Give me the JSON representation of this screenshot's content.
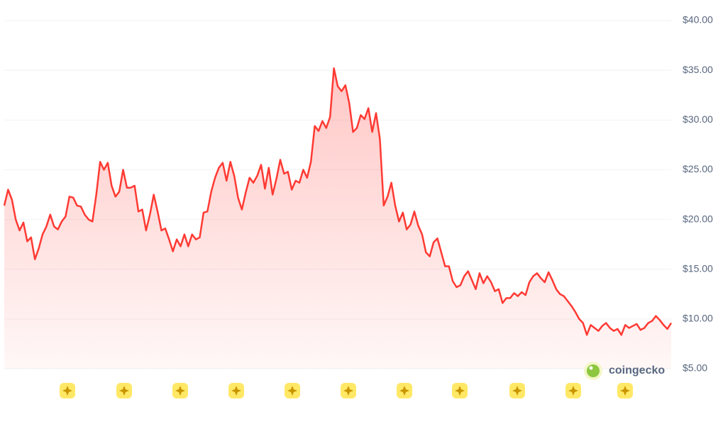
{
  "chart_data": {
    "type": "area",
    "watermark": "coingecko",
    "color": "#ff3a33",
    "ylim": [
      5,
      40
    ],
    "yticks": [
      {
        "value": 5,
        "label": "$5.00"
      },
      {
        "value": 10,
        "label": "$10.00"
      },
      {
        "value": 15,
        "label": "$15.00"
      },
      {
        "value": 20,
        "label": "$20.00"
      },
      {
        "value": 25,
        "label": "$25.00"
      },
      {
        "value": 30,
        "label": "$30.00"
      },
      {
        "value": 35,
        "label": "$35.00"
      },
      {
        "value": 40,
        "label": "$40.00"
      }
    ],
    "grid": true,
    "values": [
      21.4,
      23.0,
      22.0,
      20.0,
      18.9,
      19.7,
      17.8,
      18.2,
      16.0,
      17.1,
      18.5,
      19.3,
      20.5,
      19.3,
      19.0,
      19.8,
      20.3,
      22.3,
      22.2,
      21.4,
      21.3,
      20.5,
      20.0,
      19.8,
      22.5,
      25.8,
      25.0,
      25.7,
      23.4,
      22.3,
      22.8,
      25.0,
      23.2,
      23.2,
      23.4,
      20.8,
      21.0,
      18.9,
      20.5,
      22.5,
      20.8,
      18.9,
      19.1,
      18.0,
      16.8,
      18.0,
      17.3,
      18.5,
      17.3,
      18.5,
      18.0,
      18.2,
      20.7,
      20.8,
      22.8,
      24.2,
      25.2,
      25.7,
      23.9,
      25.8,
      24.4,
      22.2,
      21.0,
      22.7,
      24.2,
      23.7,
      24.4,
      25.5,
      23.1,
      25.2,
      22.5,
      24.1,
      26.0,
      24.6,
      24.8,
      23.0,
      23.9,
      23.7,
      25.0,
      24.2,
      25.8,
      29.4,
      28.9,
      29.9,
      29.2,
      30.3,
      35.2,
      33.4,
      32.9,
      33.5,
      31.7,
      28.8,
      29.2,
      30.5,
      30.1,
      31.2,
      28.8,
      30.7,
      28.1,
      21.4,
      22.3,
      23.7,
      21.4,
      19.8,
      20.7,
      19.0,
      19.5,
      20.8,
      19.4,
      18.5,
      16.7,
      16.3,
      17.7,
      18.1,
      16.7,
      15.3,
      15.3,
      13.8,
      13.2,
      13.4,
      14.3,
      14.8,
      13.9,
      13.0,
      14.6,
      13.6,
      14.3,
      13.7,
      12.8,
      13.0,
      11.6,
      12.1,
      12.1,
      12.6,
      12.3,
      12.7,
      12.4,
      13.7,
      14.3,
      14.6,
      14.1,
      13.7,
      14.7,
      13.9,
      13.0,
      12.5,
      12.3,
      11.8,
      11.3,
      10.7,
      10.0,
      9.6,
      8.4,
      9.4,
      9.1,
      8.8,
      9.3,
      9.6,
      9.1,
      8.8,
      9.0,
      8.4,
      9.4,
      9.1,
      9.3,
      9.5,
      8.9,
      9.1,
      9.6,
      9.8,
      10.3,
      9.9,
      9.4,
      9.0,
      9.6
    ]
  }
}
